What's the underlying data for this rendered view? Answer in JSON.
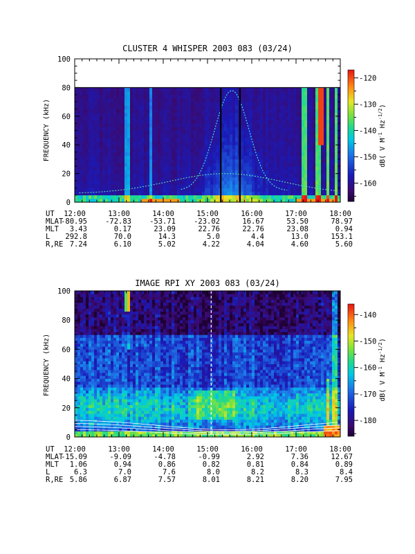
{
  "chart_data": [
    {
      "type": "heatmap",
      "title": "CLUSTER 4 WHISPER 2003 083 (03/24)",
      "ylabel": "FREQUENCY (kHz)",
      "ylim": [
        0,
        100
      ],
      "y_data_max": 80,
      "yticks": [
        "0",
        "20",
        "40",
        "60",
        "80",
        "100"
      ],
      "colorbar": {
        "label_main": "dB( V M",
        "label_sup1": "-1",
        "label_mid": " Hz",
        "label_sup2": "-1/2",
        "label_end": ")",
        "range": [
          -167,
          -117
        ],
        "ticks": [
          "-120",
          "-130",
          "-140",
          "-150",
          "-160"
        ],
        "colormap": "rainbow"
      },
      "table": {
        "row_labels": [
          "UT",
          "MLAT",
          "MLT",
          "L",
          "R,RE"
        ],
        "columns": [
          [
            "12:00",
            "-80.95",
            "3.43",
            "292.8",
            "7.24"
          ],
          [
            "13:00",
            "-72.83",
            "0.17",
            "70.0",
            "6.10"
          ],
          [
            "14:00",
            "-53.71",
            "23.09",
            "14.3",
            "5.02"
          ],
          [
            "15:00",
            "-23.02",
            "22.76",
            "5.0",
            "4.22"
          ],
          [
            "16:00",
            "16.67",
            "22.76",
            "4.4",
            "4.04"
          ],
          [
            "17:00",
            "53.50",
            "23.08",
            "13.0",
            "4.60"
          ],
          [
            "18:00",
            "78.97",
            "0.94",
            "153.1",
            "5.60"
          ]
        ]
      },
      "data_gaps_ut": [
        "15:18",
        "15:44"
      ],
      "features": [
        {
          "name": "background plasma noise band",
          "ut_start": "12:00",
          "ut_end": "18:00",
          "freq_khz": [
            0,
            4
          ],
          "level_db": -148
        },
        {
          "name": "auroral hiss bursts",
          "ut_start": "17:05",
          "ut_end": "18:00",
          "freq_khz": [
            10,
            80
          ],
          "level_db": -130
        },
        {
          "name": "plasmaspheric emission near perigee",
          "ut_start": "14:40",
          "ut_end": "16:40",
          "freq_khz": [
            5,
            80
          ],
          "level_db": -140
        }
      ]
    },
    {
      "type": "heatmap",
      "title": "IMAGE RPI XY 2003 083 (03/24)",
      "ylabel": "FREQUENCY (kHz)",
      "ylim": [
        0,
        100
      ],
      "y_data_max": 100,
      "yticks": [
        "0",
        "20",
        "40",
        "60",
        "80",
        "100"
      ],
      "colorbar": {
        "label_main": "dB( V M",
        "label_sup1": "-1",
        "label_mid": " Hz",
        "label_sup2": "-1/2",
        "label_end": ")",
        "range": [
          -186,
          -136
        ],
        "ticks": [
          "-140",
          "-150",
          "-160",
          "-170",
          "-180"
        ],
        "colormap": "rainbow"
      },
      "table": {
        "row_labels": [
          "UT",
          "MLAT",
          "MLT",
          "L",
          "R,RE"
        ],
        "columns": [
          [
            "12:00",
            "-15.09",
            "1.06",
            "6.3",
            "5.86"
          ],
          [
            "13:00",
            "-9.09",
            "0.94",
            "7.0",
            "6.87"
          ],
          [
            "14:00",
            "-4.78",
            "0.86",
            "7.6",
            "7.57"
          ],
          [
            "15:00",
            "-0.99",
            "0.82",
            "8.0",
            "8.01"
          ],
          [
            "16:00",
            "2.92",
            "0.81",
            "8.2",
            "8.21"
          ],
          [
            "17:00",
            "7.36",
            "0.84",
            "8.3",
            "8.20"
          ],
          [
            "18:00",
            "12.67",
            "0.89",
            "8.4",
            "7.95"
          ]
        ]
      },
      "conjunction_ut": "15:05",
      "features": [
        {
          "name": "continuum emission band",
          "ut_start": "12:00",
          "ut_end": "18:00",
          "freq_khz": [
            5,
            30
          ],
          "level_db": -162
        },
        {
          "name": "strong emission near 17:50",
          "ut_start": "17:40",
          "ut_end": "17:55",
          "freq_khz": [
            0,
            100
          ],
          "level_db": -155
        }
      ]
    }
  ]
}
